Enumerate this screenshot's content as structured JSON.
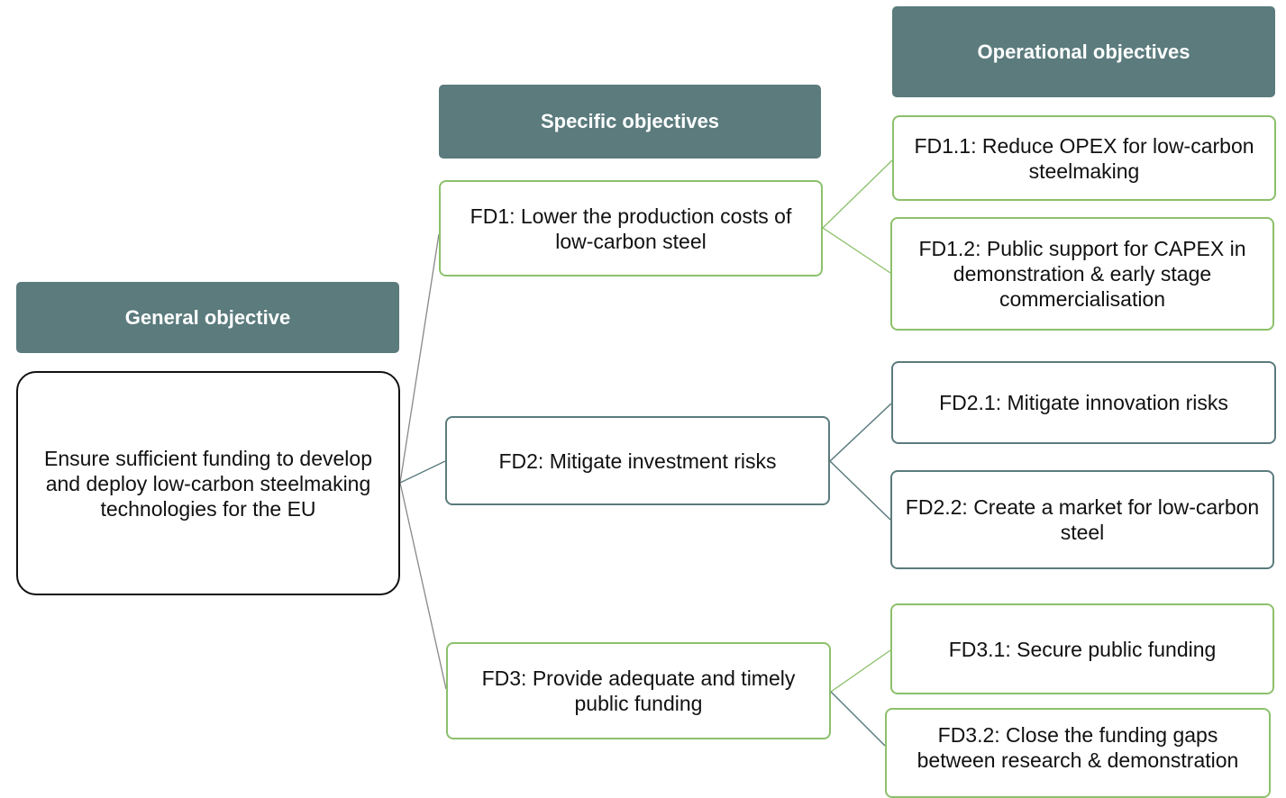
{
  "headers": {
    "general": "General objective",
    "specific": "Specific objectives",
    "operational": "Operational objectives"
  },
  "general": "Ensure sufficient funding to develop and deploy low-carbon steelmaking technologies for the EU",
  "specific": [
    {
      "label": "FD1: Lower the production costs of low-carbon steel",
      "operational": [
        "FD1.1: Reduce OPEX for low-carbon steelmaking",
        "FD1.2: Public support for CAPEX in demonstration & early stage commercialisation"
      ]
    },
    {
      "label": "FD2: Mitigate investment risks",
      "operational": [
        "FD2.1: Mitigate innovation risks",
        "FD2.2: Create a market for low-carbon steel"
      ]
    },
    {
      "label": "FD3: Provide adequate and timely public funding",
      "operational": [
        "FD3.1: Secure public funding",
        "FD3.2: Close the funding gaps between research & demonstration"
      ]
    }
  ]
}
